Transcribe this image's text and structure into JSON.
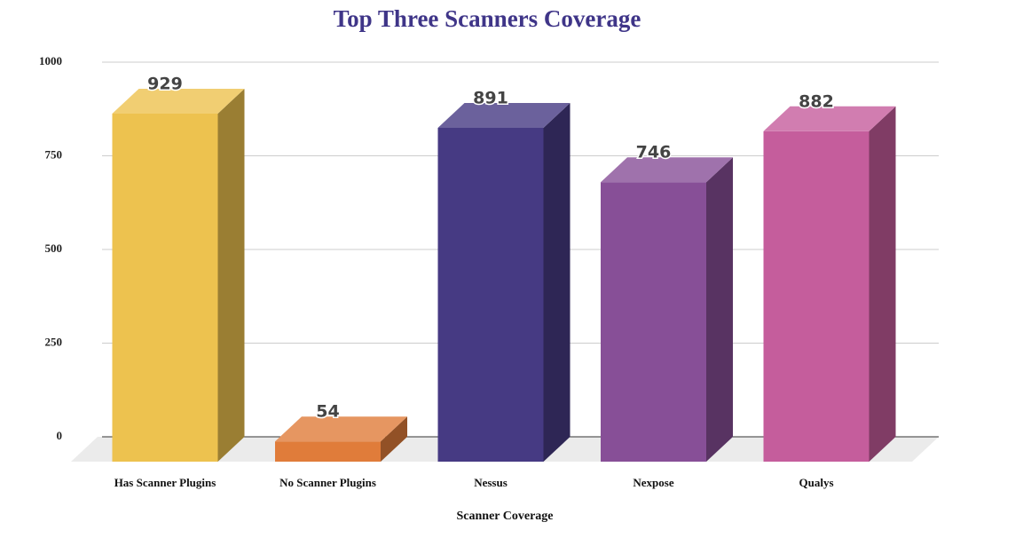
{
  "chart_data": {
    "type": "bar3d",
    "title": "Top Three Scanners Coverage",
    "x_label": "Scanner Coverage",
    "categories": [
      "Has Scanner Plugins",
      "No Scanner Plugins",
      "Nessus",
      "Nexpose",
      "Qualys"
    ],
    "values": [
      929,
      54,
      891,
      746,
      882
    ],
    "colors": [
      "#edc24f",
      "#e07c3a",
      "#463a83",
      "#874f97",
      "#c55d9c"
    ],
    "ylim": [
      0,
      1000
    ],
    "yticks": [
      0,
      250,
      500,
      750,
      1000
    ],
    "grid": true
  }
}
